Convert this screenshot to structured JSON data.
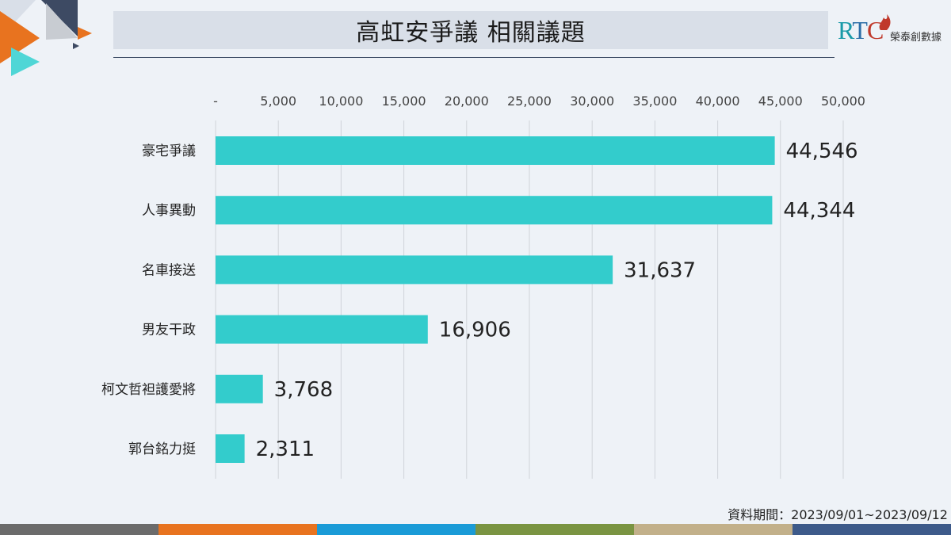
{
  "header": {
    "title": "高虹安爭議 相關議題"
  },
  "logo": {
    "mark_r": "R",
    "mark_t": "T",
    "mark_c": "C",
    "text": "榮泰創數據"
  },
  "footnote": "資料期間：2023/09/01~2023/09/12",
  "colors": {
    "bar": "#33cccc",
    "grid": "#d0d4da",
    "text": "#222222",
    "stripe": [
      "#6b6b6b",
      "#e8731f",
      "#1a9bd7",
      "#7a9442",
      "#c2b08a",
      "#3d5a8a"
    ]
  },
  "chart_data": {
    "type": "bar",
    "orientation": "horizontal",
    "categories": [
      "豪宅爭議",
      "人事異動",
      "名車接送",
      "男友干政",
      "柯文哲袒護愛將",
      "郭台銘力挺"
    ],
    "values": [
      44546,
      44344,
      31637,
      16906,
      3768,
      2311
    ],
    "value_labels": [
      "44,546",
      "44,344",
      "31,637",
      "16,906",
      "3,768",
      "2,311"
    ],
    "xlim": [
      0,
      50000
    ],
    "ticks": [
      0,
      5000,
      10000,
      15000,
      20000,
      25000,
      30000,
      35000,
      40000,
      45000,
      50000
    ],
    "tick_labels": [
      "-",
      "5,000",
      "10,000",
      "15,000",
      "20,000",
      "25,000",
      "30,000",
      "35,000",
      "40,000",
      "45,000",
      "50,000"
    ],
    "axis_position": "top",
    "grid": true,
    "legend": "none"
  }
}
